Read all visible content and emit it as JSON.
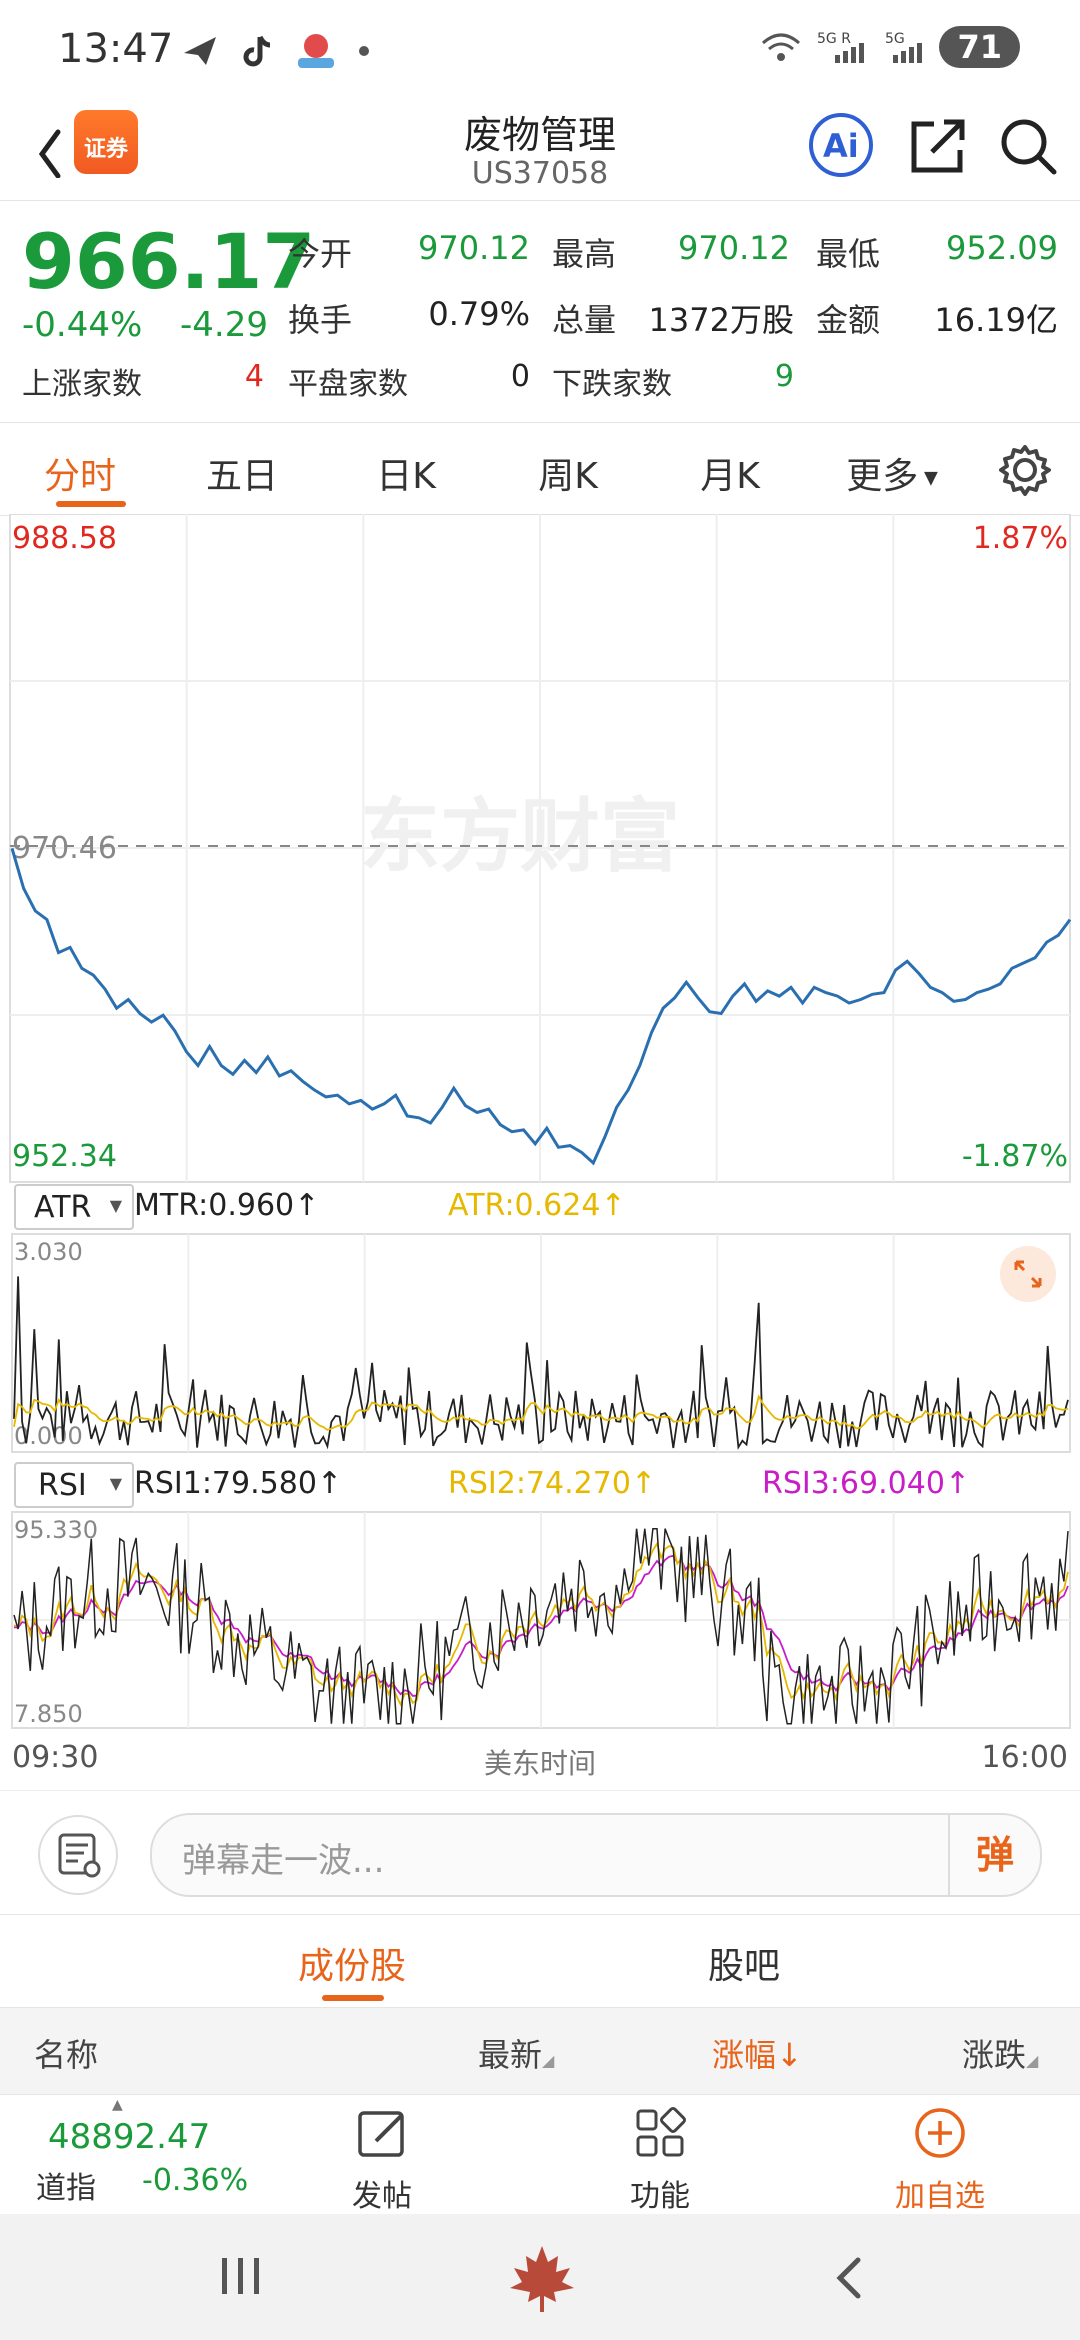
{
  "status_bar": {
    "time": "13:47",
    "battery": "71"
  },
  "header": {
    "title": "废物管理",
    "code": "US37058",
    "logo_text": "证券"
  },
  "quote": {
    "price": "966.17",
    "change_pct": "-0.44%",
    "change": "-4.29",
    "fields": [
      {
        "label": "今开",
        "value": "970.12"
      },
      {
        "label": "最高",
        "value": "970.12"
      },
      {
        "label": "最低",
        "value": "952.09"
      },
      {
        "label": "换手",
        "value": "0.79%"
      },
      {
        "label": "总量",
        "value": "1372万股"
      },
      {
        "label": "金额",
        "value": "16.19亿"
      }
    ],
    "breadth": [
      {
        "label": "上涨家数",
        "value": "4"
      },
      {
        "label": "平盘家数",
        "value": "0"
      },
      {
        "label": "下跌家数",
        "value": "9"
      }
    ]
  },
  "tabs": [
    "分时",
    "五日",
    "日K",
    "周K",
    "月K",
    "更多"
  ],
  "chart_data": [
    {
      "type": "line",
      "ymax_label": "988.58",
      "ymin_label": "952.34",
      "mid_label": "970.46",
      "pct_max": "1.87%",
      "pct_min": "-1.87%",
      "watermark": "东方财富",
      "ylim": [
        952.34,
        988.58
      ],
      "x_start": "09:30",
      "x_end": "16:00",
      "x_label": "美东时间",
      "values": [
        970.5,
        968.2,
        966.9,
        966.4,
        964.5,
        964.8,
        963.6,
        963.2,
        962.4,
        961.3,
        961.8,
        961.0,
        960.5,
        960.9,
        960.0,
        958.8,
        958.0,
        959.1,
        958.0,
        957.5,
        958.3,
        957.6,
        958.5,
        957.4,
        957.7,
        957.1,
        956.6,
        956.2,
        956.3,
        955.8,
        956.0,
        955.5,
        955.8,
        956.3,
        955.1,
        955.0,
        954.7,
        955.6,
        956.7,
        955.7,
        955.3,
        955.5,
        954.6,
        954.2,
        954.3,
        953.5,
        954.4,
        953.3,
        953.4,
        953.0,
        952.4,
        953.9,
        955.6,
        956.6,
        958.0,
        959.9,
        961.3,
        961.9,
        962.8,
        961.9,
        961.1,
        961.0,
        962.0,
        962.7,
        961.7,
        962.3,
        962.0,
        962.5,
        961.6,
        962.5,
        962.2,
        962.0,
        961.6,
        961.8,
        962.1,
        962.2,
        963.5,
        964.0,
        963.3,
        962.5,
        962.2,
        961.7,
        961.8,
        962.2,
        962.4,
        962.7,
        963.6,
        963.9,
        964.2,
        965.1,
        965.5,
        966.4
      ]
    },
    {
      "type": "line",
      "indicator": "ATR",
      "series": [
        {
          "name": "MTR",
          "value": "0.960"
        },
        {
          "name": "ATR",
          "value": "0.624"
        }
      ],
      "ymax_label": "3.030",
      "ymin_label": "0.000",
      "ylim": [
        0,
        3.03
      ]
    },
    {
      "type": "line",
      "indicator": "RSI",
      "series": [
        {
          "name": "RSI1",
          "value": "79.580"
        },
        {
          "name": "RSI2",
          "value": "74.270"
        },
        {
          "name": "RSI3",
          "value": "69.040"
        }
      ],
      "ymax_label": "95.330",
      "ymin_label": "7.850",
      "ylim": [
        7.85,
        95.33
      ]
    }
  ],
  "indicators": {
    "atr_select": "ATR",
    "mtr_text": "MTR:0.960",
    "atr_text": "ATR:0.624",
    "rsi_select": "RSI",
    "rsi1_text": "RSI1:79.580",
    "rsi2_text": "RSI2:74.270",
    "rsi3_text": "RSI3:69.040"
  },
  "colors": {
    "up": "#e0281e",
    "down": "#1a9a3a",
    "accent": "#e8641b",
    "price_line": "#2a6fb0",
    "atr": "#e6b800",
    "rsi3": "#c81ec8"
  },
  "danmu": {
    "placeholder": "弹幕走一波...",
    "send": "弹"
  },
  "segments": [
    "成份股",
    "股吧"
  ],
  "table_header": {
    "name": "名称",
    "latest": "最新",
    "change_pct": "涨幅",
    "change": "涨跌"
  },
  "bottom_bar": {
    "index_value": "48892.47",
    "index_name": "道指",
    "index_change": "-0.36%",
    "post": "发帖",
    "function": "功能",
    "add_watch": "加自选"
  }
}
